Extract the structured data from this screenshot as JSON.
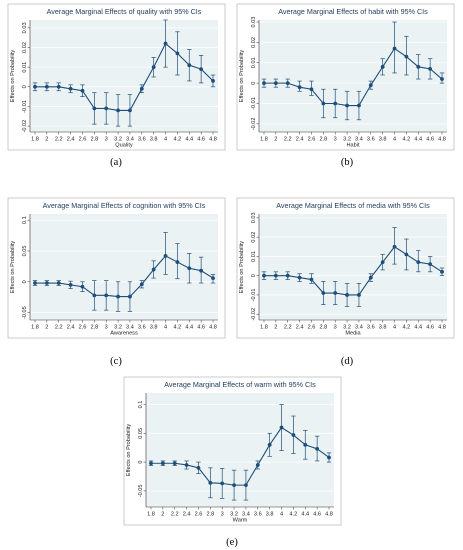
{
  "chart_data": [
    {
      "type": "line",
      "title": "Average Marginal Effects of quality with 95% CIs",
      "xlabel": "Quality",
      "ylabel": "Effects on Probability",
      "caption": "(a)",
      "xticks": [
        "1.8",
        "2",
        "2.2",
        "2.4",
        "2.6",
        "2.8",
        "3",
        "3.2",
        "3.4",
        "3.6",
        "3.8",
        "4",
        "4.2",
        "4.4",
        "4.6",
        "4.8"
      ],
      "ytick_labels": [
        "-0.02",
        "-0.01",
        "0",
        "0.01",
        "0.02",
        "0.03"
      ],
      "ylim": [
        -0.023,
        0.034
      ],
      "x": [
        1.8,
        2,
        2.2,
        2.4,
        2.6,
        2.8,
        3,
        3.2,
        3.4,
        3.6,
        3.8,
        4,
        4.2,
        4.4,
        4.6,
        4.8
      ],
      "values": [
        0,
        0,
        0,
        -0.001,
        -0.002,
        -0.011,
        -0.011,
        -0.012,
        -0.012,
        -0.001,
        0.01,
        0.022,
        0.017,
        0.011,
        0.009,
        0.003
      ],
      "ci_lower": [
        -0.002,
        -0.002,
        -0.002,
        -0.003,
        -0.005,
        -0.019,
        -0.019,
        -0.02,
        -0.02,
        -0.003,
        0.005,
        0.01,
        0.006,
        0.003,
        0.002,
        0.0
      ],
      "ci_upper": [
        0.002,
        0.002,
        0.002,
        0.001,
        0.001,
        -0.003,
        -0.003,
        -0.004,
        -0.004,
        0.001,
        0.015,
        0.034,
        0.028,
        0.019,
        0.016,
        0.006
      ]
    },
    {
      "type": "line",
      "title": "Average Marginal Effects of habit with 95% CIs",
      "xlabel": "Habit",
      "ylabel": "Effects on Probability",
      "caption": "(b)",
      "xticks": [
        "1.8",
        "2",
        "2.2",
        "2.4",
        "2.6",
        "2.8",
        "3",
        "3.2",
        "3.4",
        "3.6",
        "3.8",
        "4",
        "4.2",
        "4.4",
        "4.6",
        "4.8"
      ],
      "ytick_labels": [
        "-0.02",
        "-0.01",
        "0",
        "0.01",
        "0.02",
        "0.03"
      ],
      "ylim": [
        -0.024,
        0.031
      ],
      "x": [
        1.8,
        2,
        2.2,
        2.4,
        2.6,
        2.8,
        3,
        3.2,
        3.4,
        3.6,
        3.8,
        4,
        4.2,
        4.4,
        4.6,
        4.8
      ],
      "values": [
        0,
        0,
        0,
        -0.002,
        -0.003,
        -0.01,
        -0.01,
        -0.011,
        -0.011,
        -0.001,
        0.008,
        0.017,
        0.013,
        0.008,
        0.007,
        0.002
      ],
      "ci_lower": [
        -0.002,
        -0.002,
        -0.002,
        -0.004,
        -0.006,
        -0.017,
        -0.017,
        -0.018,
        -0.018,
        -0.003,
        0.004,
        0.005,
        0.004,
        0.002,
        0.002,
        0.0
      ],
      "ci_upper": [
        0.002,
        0.002,
        0.002,
        0.001,
        0.001,
        -0.003,
        -0.003,
        -0.004,
        -0.004,
        0.001,
        0.012,
        0.03,
        0.023,
        0.014,
        0.012,
        0.005
      ]
    },
    {
      "type": "line",
      "title": "Average Marginal Effects of cognition with 95% CIs",
      "xlabel": "Awareness",
      "ylabel": "Effects on Probability",
      "caption": "(c)",
      "xticks": [
        "1.8",
        "2",
        "2.2",
        "2.4",
        "2.6",
        "2.8",
        "3",
        "3.2",
        "3.4",
        "3.6",
        "3.8",
        "4",
        "4.2",
        "4.4",
        "4.6",
        "4.8"
      ],
      "ytick_labels": [
        "-0.05",
        "0",
        "0.05",
        "0.1"
      ],
      "ylim": [
        -0.062,
        0.11
      ],
      "x": [
        1.8,
        2,
        2.2,
        2.4,
        2.6,
        2.8,
        3,
        3.2,
        3.4,
        3.6,
        3.8,
        4,
        4.2,
        4.4,
        4.6,
        4.8
      ],
      "values": [
        -0.002,
        -0.002,
        -0.002,
        -0.005,
        -0.008,
        -0.022,
        -0.022,
        -0.024,
        -0.024,
        -0.004,
        0.02,
        0.042,
        0.032,
        0.022,
        0.018,
        0.006
      ],
      "ci_lower": [
        -0.006,
        -0.006,
        -0.006,
        -0.011,
        -0.016,
        -0.046,
        -0.046,
        -0.048,
        -0.048,
        -0.01,
        0.006,
        0.012,
        0.005,
        -0.002,
        -0.002,
        -0.002
      ],
      "ci_upper": [
        0.002,
        0.002,
        0.002,
        0.001,
        0.0,
        0.002,
        0.002,
        0.0,
        0.0,
        0.002,
        0.034,
        0.08,
        0.062,
        0.046,
        0.04,
        0.012
      ]
    },
    {
      "type": "line",
      "title": "Average Marginal Effects of media with 95% CIs",
      "xlabel": "Media",
      "ylabel": "Effects on Probability",
      "caption": "(d)",
      "xticks": [
        "1.8",
        "2",
        "2.2",
        "2.4",
        "2.6",
        "2.8",
        "3",
        "3.2",
        "3.4",
        "3.6",
        "3.8",
        "4",
        "4.2",
        "4.4",
        "4.6",
        "4.8"
      ],
      "ytick_labels": [
        "-0.02",
        "-0.01",
        "0",
        "0.01",
        "0.02",
        "0.03"
      ],
      "ylim": [
        -0.023,
        0.032
      ],
      "x": [
        1.8,
        2,
        2.2,
        2.4,
        2.6,
        2.8,
        3,
        3.2,
        3.4,
        3.6,
        3.8,
        4,
        4.2,
        4.4,
        4.6,
        4.8
      ],
      "values": [
        0,
        0,
        0,
        -0.001,
        -0.002,
        -0.009,
        -0.009,
        -0.01,
        -0.01,
        -0.001,
        0.007,
        0.015,
        0.011,
        0.007,
        0.006,
        0.002
      ],
      "ci_lower": [
        -0.002,
        -0.002,
        -0.002,
        -0.003,
        -0.004,
        -0.015,
        -0.015,
        -0.016,
        -0.016,
        -0.003,
        0.003,
        0.006,
        0.003,
        0.002,
        0.002,
        0.0
      ],
      "ci_upper": [
        0.002,
        0.002,
        0.002,
        0.001,
        0.001,
        -0.003,
        -0.003,
        -0.004,
        -0.004,
        0.001,
        0.011,
        0.025,
        0.019,
        0.013,
        0.01,
        0.004
      ]
    },
    {
      "type": "line",
      "title": "Average Marginal Effects of warm with 95% CIs",
      "xlabel": "Warm",
      "ylabel": "Effects on Probability",
      "caption": "(e)",
      "xticks": [
        "1.8",
        "2",
        "2.2",
        "2.4",
        "2.6",
        "2.8",
        "3",
        "3.2",
        "3.4",
        "3.6",
        "3.8",
        "4",
        "4.2",
        "4.4",
        "4.6",
        "4.8"
      ],
      "ytick_labels": [
        "-0.05",
        "0",
        "0.05",
        "0.1"
      ],
      "ylim": [
        -0.078,
        0.12
      ],
      "x": [
        1.8,
        2,
        2.2,
        2.4,
        2.6,
        2.8,
        3,
        3.2,
        3.4,
        3.6,
        3.8,
        4,
        4.2,
        4.4,
        4.6,
        4.8
      ],
      "values": [
        -0.002,
        -0.002,
        -0.002,
        -0.005,
        -0.01,
        -0.036,
        -0.037,
        -0.04,
        -0.04,
        -0.005,
        0.03,
        0.06,
        0.047,
        0.03,
        0.023,
        0.008
      ],
      "ci_lower": [
        -0.006,
        -0.006,
        -0.006,
        -0.012,
        -0.02,
        -0.062,
        -0.063,
        -0.066,
        -0.066,
        -0.012,
        0.01,
        0.02,
        0.015,
        0.005,
        0.002,
        0.0
      ],
      "ci_upper": [
        0.002,
        0.002,
        0.002,
        0.002,
        0.0,
        -0.01,
        -0.011,
        -0.014,
        -0.014,
        0.002,
        0.05,
        0.1,
        0.08,
        0.055,
        0.045,
        0.016
      ]
    }
  ],
  "style": {
    "line_color": "#1f4e79",
    "plot_background": "#eaf2f3",
    "title_color": "#1f3b5a"
  }
}
